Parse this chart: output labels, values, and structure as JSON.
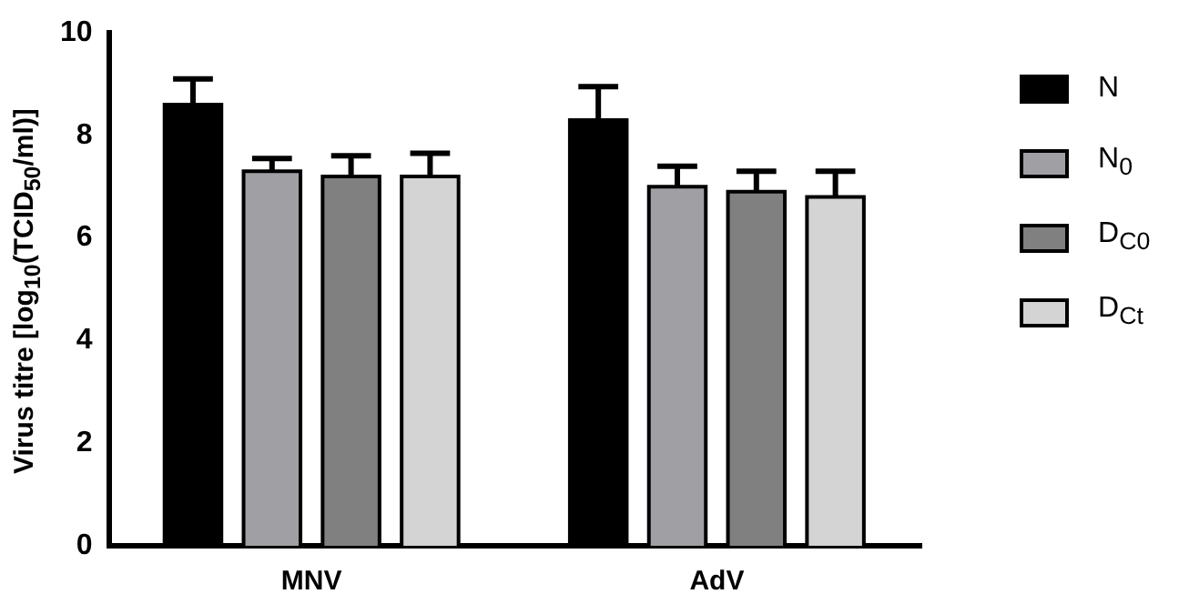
{
  "chart_data": {
    "type": "bar",
    "ylabel": "Virus titre [log$_{10}$(TCID$_{50}$/ml)]",
    "categories": [
      "MNV",
      "AdV"
    ],
    "series": [
      {
        "name": "N",
        "color": "#000000",
        "values": [
          8.6,
          8.3
        ],
        "errors": [
          [
            8.6,
            9.1
          ],
          [
            8.3,
            8.95
          ]
        ]
      },
      {
        "name": "N$_{0}$",
        "color": "#a0a0a4",
        "values": [
          7.3,
          7.0
        ],
        "errors": [
          [
            7.3,
            7.55
          ],
          [
            7.0,
            7.4
          ]
        ]
      },
      {
        "name": "D$_{C0}$",
        "color": "#808080",
        "values": [
          7.2,
          6.9
        ],
        "errors": [
          [
            7.2,
            7.6
          ],
          [
            6.9,
            7.3
          ]
        ]
      },
      {
        "name": "D$_{Ct}$",
        "color": "#d4d4d4",
        "values": [
          7.2,
          6.8
        ],
        "errors": [
          [
            7.2,
            7.65
          ],
          [
            6.8,
            7.3
          ]
        ]
      }
    ],
    "ylim": [
      0,
      10
    ],
    "yticks": [
      0,
      2,
      4,
      6,
      8,
      10
    ],
    "grid": false,
    "legend": "right"
  }
}
